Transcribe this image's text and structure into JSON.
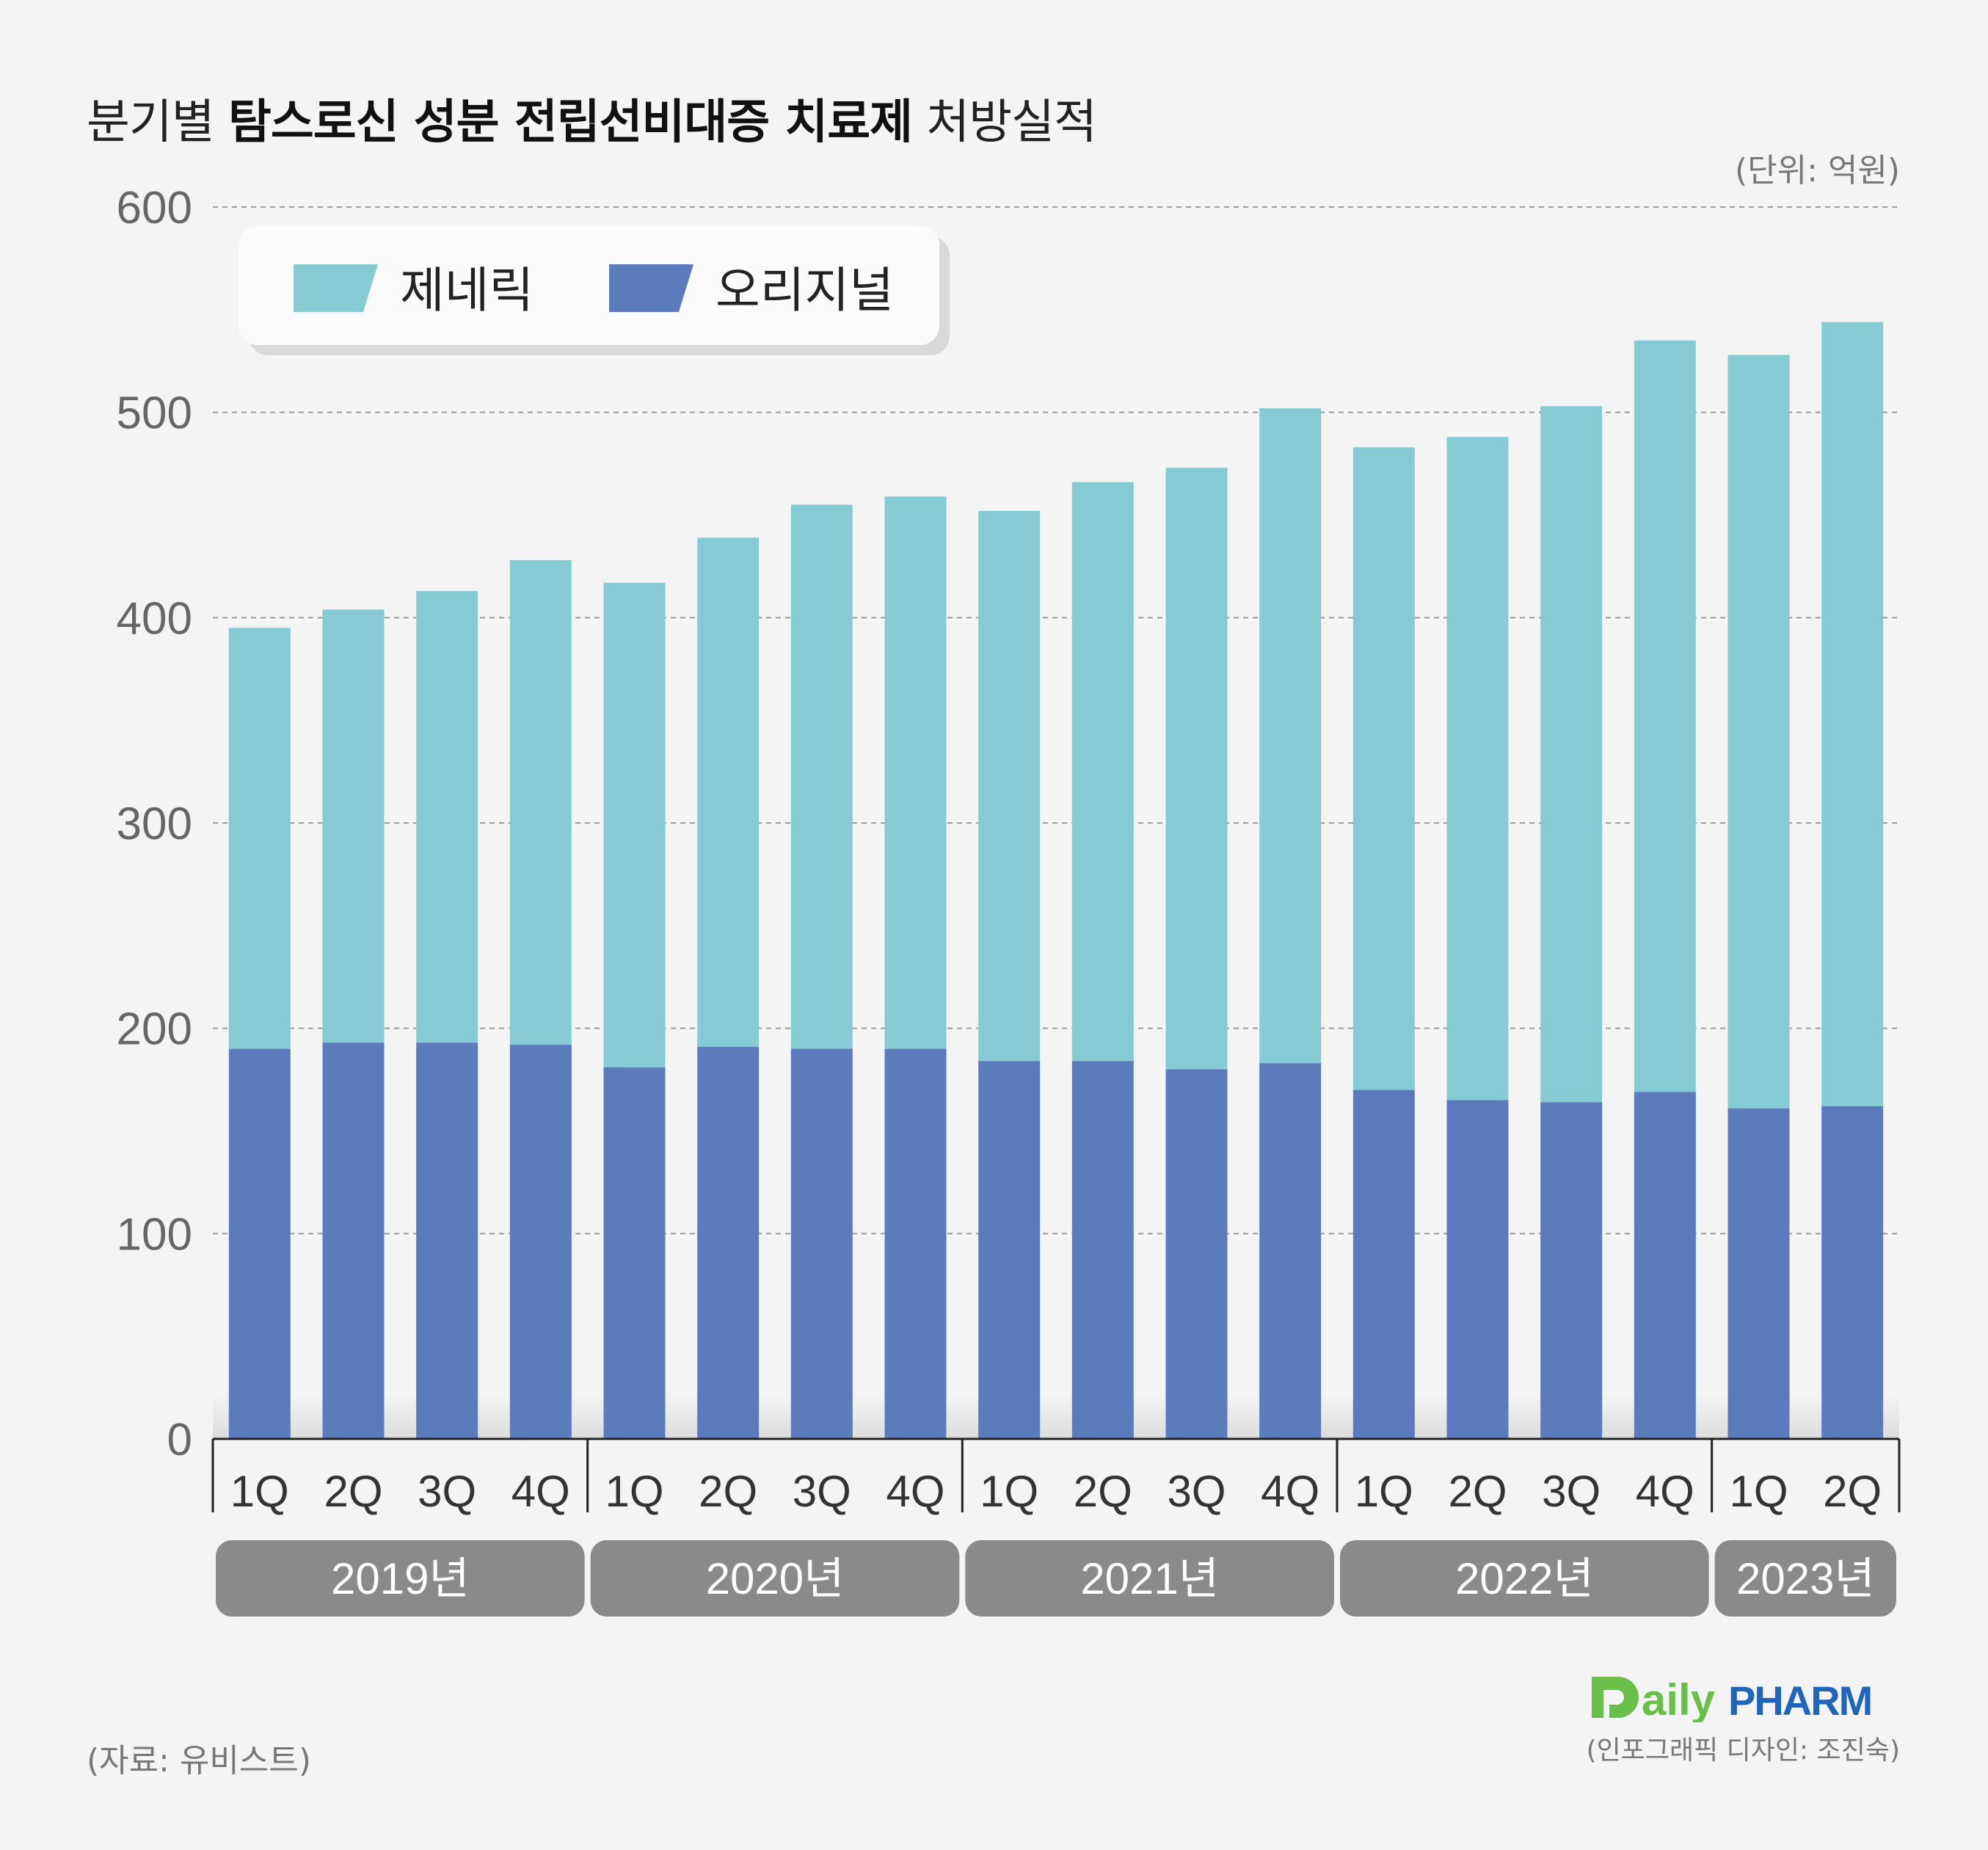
{
  "header": {
    "title_prefix": "분기별",
    "title_bold": "탐스로신 성분 전립선비대증 치료제",
    "title_suffix": "처방실적",
    "unit": "(단위: 억원)"
  },
  "footer": {
    "source": "(자료: 유비스트)",
    "credit": "(인포그래픽 디자인: 조진숙)",
    "logo_text_a": "aily",
    "logo_text_b": "PHARM"
  },
  "colors": {
    "generic": "#86cbd4",
    "original": "#5b7bbd",
    "year_box": "#8a8a8a",
    "grid": "#9a9a9a",
    "logo_green": "#6abf4b",
    "logo_blue": "#1f66b8"
  },
  "chart_data": {
    "type": "bar",
    "stacked": true,
    "ylim": [
      0,
      600
    ],
    "yticks": [
      "0",
      "100",
      "200",
      "300",
      "400",
      "500",
      "600"
    ],
    "categories": [
      "1Q",
      "2Q",
      "3Q",
      "4Q",
      "1Q",
      "2Q",
      "3Q",
      "4Q",
      "1Q",
      "2Q",
      "3Q",
      "4Q",
      "1Q",
      "2Q",
      "3Q",
      "4Q",
      "1Q",
      "2Q"
    ],
    "years": [
      {
        "label": "2019년",
        "count": 4
      },
      {
        "label": "2020년",
        "count": 4
      },
      {
        "label": "2021년",
        "count": 4
      },
      {
        "label": "2022년",
        "count": 4
      },
      {
        "label": "2023년",
        "count": 2
      }
    ],
    "legend_placement": "top-left",
    "grid": true,
    "series": [
      {
        "name": "오리지널",
        "values": [
          190,
          193,
          193,
          192,
          181,
          191,
          190,
          190,
          184,
          184,
          180,
          183,
          170,
          165,
          164,
          169,
          161,
          162
        ]
      },
      {
        "name": "제네릭",
        "values": [
          205,
          211,
          220,
          236,
          236,
          248,
          265,
          269,
          268,
          282,
          293,
          319,
          313,
          323,
          339,
          366,
          367,
          382
        ]
      }
    ]
  }
}
